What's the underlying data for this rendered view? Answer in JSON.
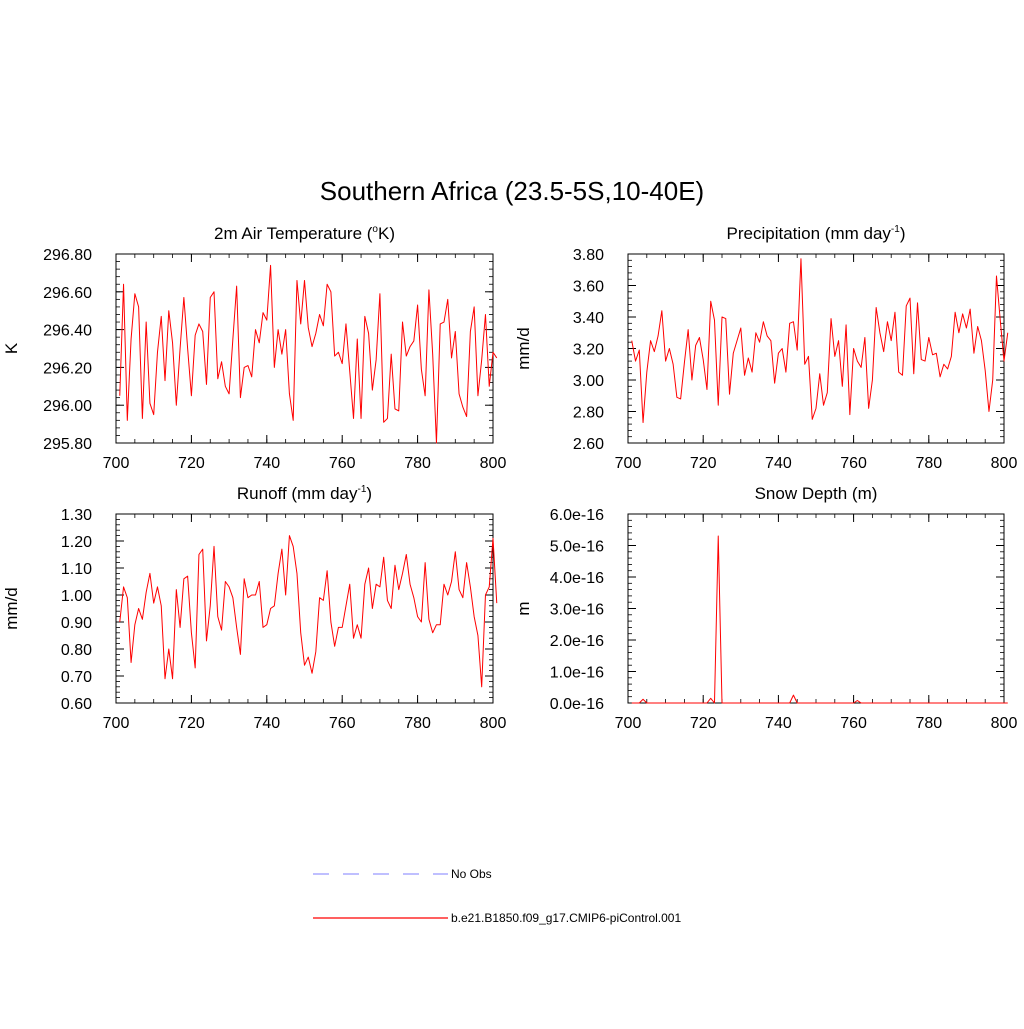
{
  "figure": {
    "title": "Southern Africa (23.5-5S,10-40E)"
  },
  "colors": {
    "model": "#ff0000",
    "obs": "#9999ff",
    "axis": "#000000"
  },
  "legend": {
    "items": [
      {
        "label": "No Obs",
        "style": "dashed",
        "color": "#9999ff"
      },
      {
        "label": "b.e21.B1850.f09_g17.CMIP6-piControl.001",
        "style": "solid",
        "color": "#ff0000"
      }
    ]
  },
  "chart_data": [
    {
      "type": "line",
      "title": "2m Air Temperature (oK)",
      "title_parts": [
        "2m Air Temperature (",
        "o",
        "K)"
      ],
      "ylabel": "K",
      "xlabel": "",
      "xlim": [
        700,
        800
      ],
      "ylim": [
        295.8,
        296.8
      ],
      "xticks": [
        700,
        720,
        740,
        760,
        780,
        800
      ],
      "xtick_labels": [
        "700",
        "720",
        "740",
        "760",
        "780",
        "800"
      ],
      "yticks": [
        295.8,
        296.0,
        296.2,
        296.4,
        296.6,
        296.8
      ],
      "ytick_labels": [
        "295.80",
        "296.00",
        "296.20",
        "296.40",
        "296.60",
        "296.80"
      ],
      "x_start": 701,
      "series": [
        {
          "name": "b.e21.B1850.f09_g17.CMIP6-piControl.001",
          "values": [
            296.05,
            296.64,
            295.92,
            296.35,
            296.59,
            296.52,
            295.93,
            296.44,
            296.01,
            295.95,
            296.28,
            296.47,
            296.13,
            296.5,
            296.33,
            296.0,
            296.3,
            296.57,
            296.3,
            296.05,
            296.37,
            296.43,
            296.39,
            296.11,
            296.57,
            296.6,
            296.14,
            296.23,
            296.1,
            296.06,
            296.35,
            296.63,
            296.04,
            296.2,
            296.21,
            296.15,
            296.4,
            296.33,
            296.49,
            296.45,
            296.74,
            296.2,
            296.4,
            296.27,
            296.4,
            296.06,
            295.92,
            296.66,
            296.43,
            296.66,
            296.41,
            296.31,
            296.38,
            296.48,
            296.42,
            296.64,
            296.6,
            296.26,
            296.28,
            296.22,
            296.43,
            296.18,
            295.93,
            296.35,
            295.93,
            296.47,
            296.38,
            296.08,
            296.24,
            296.59,
            295.91,
            295.93,
            296.27,
            295.98,
            295.97,
            296.44,
            296.26,
            296.31,
            296.34,
            296.53,
            296.19,
            296.05,
            296.61,
            296.27,
            295.8,
            296.43,
            296.44,
            296.56,
            296.25,
            296.39,
            296.06,
            295.99,
            295.94,
            296.39,
            296.52,
            296.05,
            296.24,
            296.48,
            296.1,
            296.28,
            296.25
          ]
        }
      ]
    },
    {
      "type": "line",
      "title": "Precipitation (mm day-1)",
      "title_parts": [
        "Precipitation (mm day",
        "-1",
        ")"
      ],
      "ylabel": "mm/d",
      "xlabel": "",
      "xlim": [
        700,
        800
      ],
      "ylim": [
        2.6,
        3.8
      ],
      "xticks": [
        700,
        720,
        740,
        760,
        780,
        800
      ],
      "xtick_labels": [
        "700",
        "720",
        "740",
        "760",
        "780",
        "800"
      ],
      "yticks": [
        2.6,
        2.8,
        3.0,
        3.2,
        3.4,
        3.6,
        3.8
      ],
      "ytick_labels": [
        "2.60",
        "2.80",
        "3.00",
        "3.20",
        "3.40",
        "3.60",
        "3.80"
      ],
      "x_start": 701,
      "series": [
        {
          "name": "b.e21.B1850.f09_g17.CMIP6-piControl.001",
          "values": [
            3.25,
            3.12,
            3.19,
            2.73,
            3.05,
            3.25,
            3.18,
            3.28,
            3.44,
            3.12,
            3.2,
            3.1,
            2.89,
            2.88,
            3.11,
            3.32,
            3.0,
            3.22,
            3.27,
            3.13,
            2.94,
            3.5,
            3.38,
            2.84,
            3.4,
            3.39,
            2.91,
            3.17,
            3.25,
            3.33,
            3.03,
            3.14,
            3.05,
            3.3,
            3.24,
            3.37,
            3.28,
            3.25,
            2.98,
            3.17,
            3.2,
            3.05,
            3.36,
            3.37,
            3.19,
            3.77,
            3.1,
            3.15,
            2.75,
            2.82,
            3.04,
            2.84,
            2.92,
            3.39,
            3.15,
            3.25,
            2.96,
            3.35,
            2.78,
            3.2,
            3.12,
            3.08,
            3.27,
            2.82,
            3.0,
            3.46,
            3.3,
            3.18,
            3.37,
            3.25,
            3.43,
            3.05,
            3.03,
            3.47,
            3.52,
            3.04,
            3.49,
            3.13,
            3.12,
            3.27,
            3.16,
            3.17,
            3.02,
            3.1,
            3.07,
            3.15,
            3.43,
            3.3,
            3.42,
            3.33,
            3.45,
            3.17,
            3.34,
            3.25,
            3.06,
            2.8,
            3.0,
            3.66,
            3.38,
            3.12,
            3.3
          ]
        }
      ]
    },
    {
      "type": "line",
      "title": "Runoff (mm day-1)",
      "title_parts": [
        "Runoff (mm day",
        "-1",
        ")"
      ],
      "ylabel": "mm/d",
      "xlabel": "",
      "xlim": [
        700,
        800
      ],
      "ylim": [
        0.6,
        1.3
      ],
      "xticks": [
        700,
        720,
        740,
        760,
        780,
        800
      ],
      "xtick_labels": [
        "700",
        "720",
        "740",
        "760",
        "780",
        "800"
      ],
      "yticks": [
        0.6,
        0.7,
        0.8,
        0.9,
        1.0,
        1.1,
        1.2,
        1.3
      ],
      "ytick_labels": [
        "0.60",
        "0.70",
        "0.80",
        "0.90",
        "1.00",
        "1.10",
        "1.20",
        "1.30"
      ],
      "x_start": 701,
      "series": [
        {
          "name": "b.e21.B1850.f09_g17.CMIP6-piControl.001",
          "values": [
            0.9,
            1.03,
            0.99,
            0.75,
            0.89,
            0.95,
            0.91,
            1.01,
            1.08,
            0.97,
            1.03,
            0.96,
            0.69,
            0.8,
            0.69,
            1.02,
            0.88,
            1.06,
            1.07,
            0.86,
            0.73,
            1.15,
            1.17,
            0.83,
            0.96,
            1.18,
            0.92,
            0.87,
            1.05,
            1.03,
            0.99,
            0.88,
            0.78,
            1.06,
            0.99,
            1.0,
            1.0,
            1.05,
            0.88,
            0.89,
            0.95,
            0.96,
            1.08,
            1.17,
            1.0,
            1.22,
            1.18,
            1.08,
            0.86,
            0.74,
            0.77,
            0.71,
            0.79,
            0.99,
            0.98,
            1.09,
            0.9,
            0.81,
            0.88,
            0.88,
            0.96,
            1.04,
            0.84,
            0.89,
            0.84,
            1.04,
            1.1,
            0.95,
            1.04,
            1.03,
            1.14,
            0.98,
            0.95,
            1.11,
            1.02,
            1.08,
            1.15,
            1.04,
            0.99,
            0.92,
            0.9,
            1.12,
            0.91,
            0.86,
            0.89,
            0.89,
            1.04,
            1.0,
            1.05,
            1.16,
            1.02,
            0.99,
            1.12,
            1.03,
            0.92,
            0.85,
            0.66,
            1.0,
            1.03,
            1.21,
            0.97
          ]
        }
      ]
    },
    {
      "type": "line",
      "title": "Snow Depth (m)",
      "title_parts": [
        "Snow Depth (m)"
      ],
      "ylabel": "m",
      "xlabel": "",
      "xlim": [
        700,
        800
      ],
      "ylim": [
        0,
        6e-16
      ],
      "xticks": [
        700,
        720,
        740,
        760,
        780,
        800
      ],
      "xtick_labels": [
        "700",
        "720",
        "740",
        "760",
        "780",
        "800"
      ],
      "yticks": [
        0,
        1e-16,
        2e-16,
        3e-16,
        4e-16,
        5e-16,
        6e-16
      ],
      "ytick_labels": [
        "0.0e-16",
        "1.0e-16",
        "2.0e-16",
        "3.0e-16",
        "4.0e-16",
        "5.0e-16",
        "6.0e-16"
      ],
      "x_start": 701,
      "series": [
        {
          "name": "b.e21.B1850.f09_g17.CMIP6-piControl.001",
          "values": [
            0,
            0,
            0,
            1.2e-17,
            0,
            0,
            0,
            0,
            0,
            0,
            0,
            0,
            0,
            0,
            0,
            0,
            0,
            0,
            0,
            0,
            0,
            1.5e-17,
            0,
            5.3e-16,
            0,
            0,
            0,
            0,
            0,
            0,
            0,
            0,
            0,
            0,
            0,
            0,
            0,
            0,
            0,
            0,
            0,
            0,
            0,
            2.5e-17,
            0,
            0,
            0,
            0,
            0,
            0,
            0,
            0,
            0,
            0,
            0,
            0,
            0,
            0,
            0,
            0,
            8e-18,
            0,
            0,
            0,
            0,
            0,
            0,
            0,
            0,
            0,
            0,
            0,
            0,
            0,
            0,
            0,
            0,
            0,
            0,
            0,
            0,
            0,
            0,
            0,
            0,
            0,
            0,
            0,
            0,
            0,
            0,
            0,
            0,
            0,
            0,
            0,
            0,
            0,
            0,
            0,
            0
          ]
        }
      ]
    }
  ]
}
